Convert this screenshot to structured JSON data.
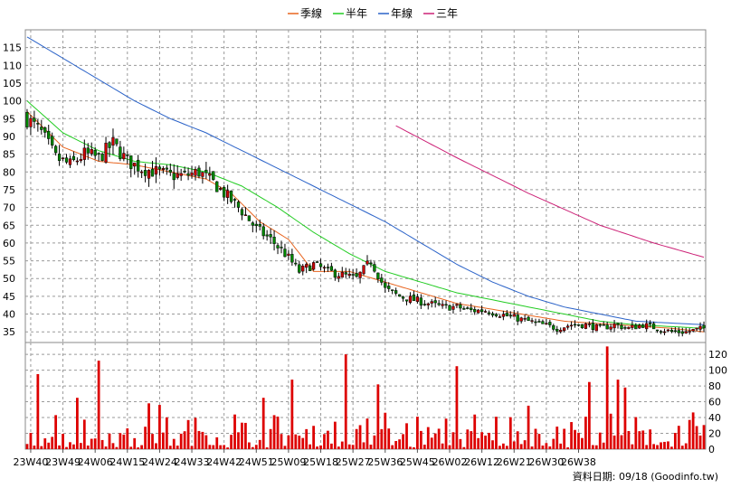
{
  "chart_data": {
    "type": "candlestick-with-volume",
    "legend": [
      {
        "name": "季線",
        "color": "#e8641e"
      },
      {
        "name": "半年",
        "color": "#22cc22"
      },
      {
        "name": "年線",
        "color": "#2a62c8"
      },
      {
        "name": "三年",
        "color": "#cc2277"
      }
    ],
    "price_axis": {
      "ylim": [
        32,
        120
      ],
      "ticks": [
        35,
        40,
        45,
        50,
        55,
        60,
        65,
        70,
        75,
        80,
        85,
        90,
        95,
        100,
        105,
        110,
        115
      ]
    },
    "volume_axis": {
      "ylim": [
        0,
        135
      ],
      "ticks": [
        0,
        20,
        40,
        60,
        80,
        100,
        120
      ]
    },
    "x_tick_labels": [
      "23W40",
      "23W49",
      "24W06",
      "24W15",
      "24W24",
      "24W33",
      "24W42",
      "24W51",
      "25W09",
      "25W18",
      "25W27",
      "25W36",
      "25W45",
      "26W02",
      "26W12",
      "26W21",
      "26W30",
      "26W38"
    ],
    "grid": true,
    "colors": {
      "up": "#cc0000",
      "down": "#008800",
      "volume": "#dd0000",
      "grid": "#9a9a9a"
    },
    "close_anchors": [
      [
        0,
        95
      ],
      [
        4,
        91
      ],
      [
        8,
        84
      ],
      [
        12,
        82
      ],
      [
        16,
        85
      ],
      [
        20,
        84
      ],
      [
        24,
        88
      ],
      [
        28,
        83
      ],
      [
        32,
        81
      ],
      [
        36,
        80
      ],
      [
        40,
        79
      ],
      [
        44,
        79
      ],
      [
        48,
        80
      ],
      [
        52,
        77
      ],
      [
        56,
        73
      ],
      [
        60,
        69
      ],
      [
        64,
        64
      ],
      [
        68,
        61
      ],
      [
        72,
        57
      ],
      [
        76,
        52
      ],
      [
        80,
        54
      ],
      [
        84,
        52
      ],
      [
        88,
        51
      ],
      [
        92,
        50
      ],
      [
        96,
        55
      ],
      [
        100,
        47
      ],
      [
        104,
        45
      ],
      [
        108,
        44
      ],
      [
        112,
        43
      ],
      [
        116,
        42
      ],
      [
        120,
        42
      ],
      [
        124,
        41
      ],
      [
        128,
        41
      ],
      [
        132,
        40
      ],
      [
        136,
        39
      ],
      [
        140,
        38
      ],
      [
        144,
        37
      ],
      [
        148,
        36
      ],
      [
        152,
        37
      ],
      [
        156,
        37
      ],
      [
        160,
        36
      ],
      [
        164,
        37
      ],
      [
        168,
        36
      ],
      [
        172,
        37
      ],
      [
        176,
        36
      ],
      [
        180,
        35
      ],
      [
        184,
        35
      ],
      [
        189,
        36
      ]
    ],
    "ma_quarter": [
      [
        0,
        97
      ],
      [
        10,
        87
      ],
      [
        20,
        83
      ],
      [
        30,
        82
      ],
      [
        40,
        80
      ],
      [
        50,
        78
      ],
      [
        57,
        74
      ],
      [
        65,
        66
      ],
      [
        73,
        61
      ],
      [
        80,
        52
      ],
      [
        90,
        52
      ],
      [
        100,
        49
      ],
      [
        110,
        46
      ],
      [
        120,
        43
      ],
      [
        132,
        41
      ],
      [
        150,
        38
      ],
      [
        165,
        37
      ],
      [
        180,
        36
      ],
      [
        189,
        35
      ]
    ],
    "ma_halfyear": [
      [
        0,
        100
      ],
      [
        10,
        91
      ],
      [
        20,
        86
      ],
      [
        30,
        83
      ],
      [
        40,
        82
      ],
      [
        50,
        80
      ],
      [
        60,
        76
      ],
      [
        70,
        70
      ],
      [
        80,
        63
      ],
      [
        90,
        57
      ],
      [
        100,
        52
      ],
      [
        110,
        49
      ],
      [
        120,
        46
      ],
      [
        130,
        44
      ],
      [
        140,
        42
      ],
      [
        150,
        40
      ],
      [
        160,
        38
      ],
      [
        170,
        37
      ],
      [
        189,
        36
      ]
    ],
    "ma_year": [
      [
        0,
        118
      ],
      [
        10,
        112
      ],
      [
        20,
        106
      ],
      [
        30,
        100
      ],
      [
        40,
        95
      ],
      [
        50,
        91
      ],
      [
        60,
        86
      ],
      [
        70,
        81
      ],
      [
        80,
        76
      ],
      [
        90,
        71
      ],
      [
        100,
        66
      ],
      [
        110,
        60
      ],
      [
        120,
        54
      ],
      [
        130,
        49
      ],
      [
        140,
        45
      ],
      [
        150,
        42
      ],
      [
        160,
        40
      ],
      [
        170,
        38
      ],
      [
        189,
        37
      ]
    ],
    "ma_3year": [
      [
        103,
        93
      ],
      [
        120,
        84
      ],
      [
        140,
        74
      ],
      [
        160,
        65
      ],
      [
        175,
        60
      ],
      [
        189,
        56
      ]
    ],
    "volume_peaks": [
      [
        3,
        95
      ],
      [
        14,
        65
      ],
      [
        20,
        112
      ],
      [
        34,
        58
      ],
      [
        37,
        56
      ],
      [
        66,
        65
      ],
      [
        74,
        88
      ],
      [
        89,
        120
      ],
      [
        98,
        82
      ],
      [
        120,
        105
      ],
      [
        140,
        55
      ],
      [
        157,
        85
      ],
      [
        162,
        130
      ],
      [
        165,
        88
      ],
      [
        167,
        78
      ]
    ],
    "footer": {
      "label": "資料日期:",
      "date": "09/18",
      "source": "(Goodinfo.tw)"
    }
  }
}
